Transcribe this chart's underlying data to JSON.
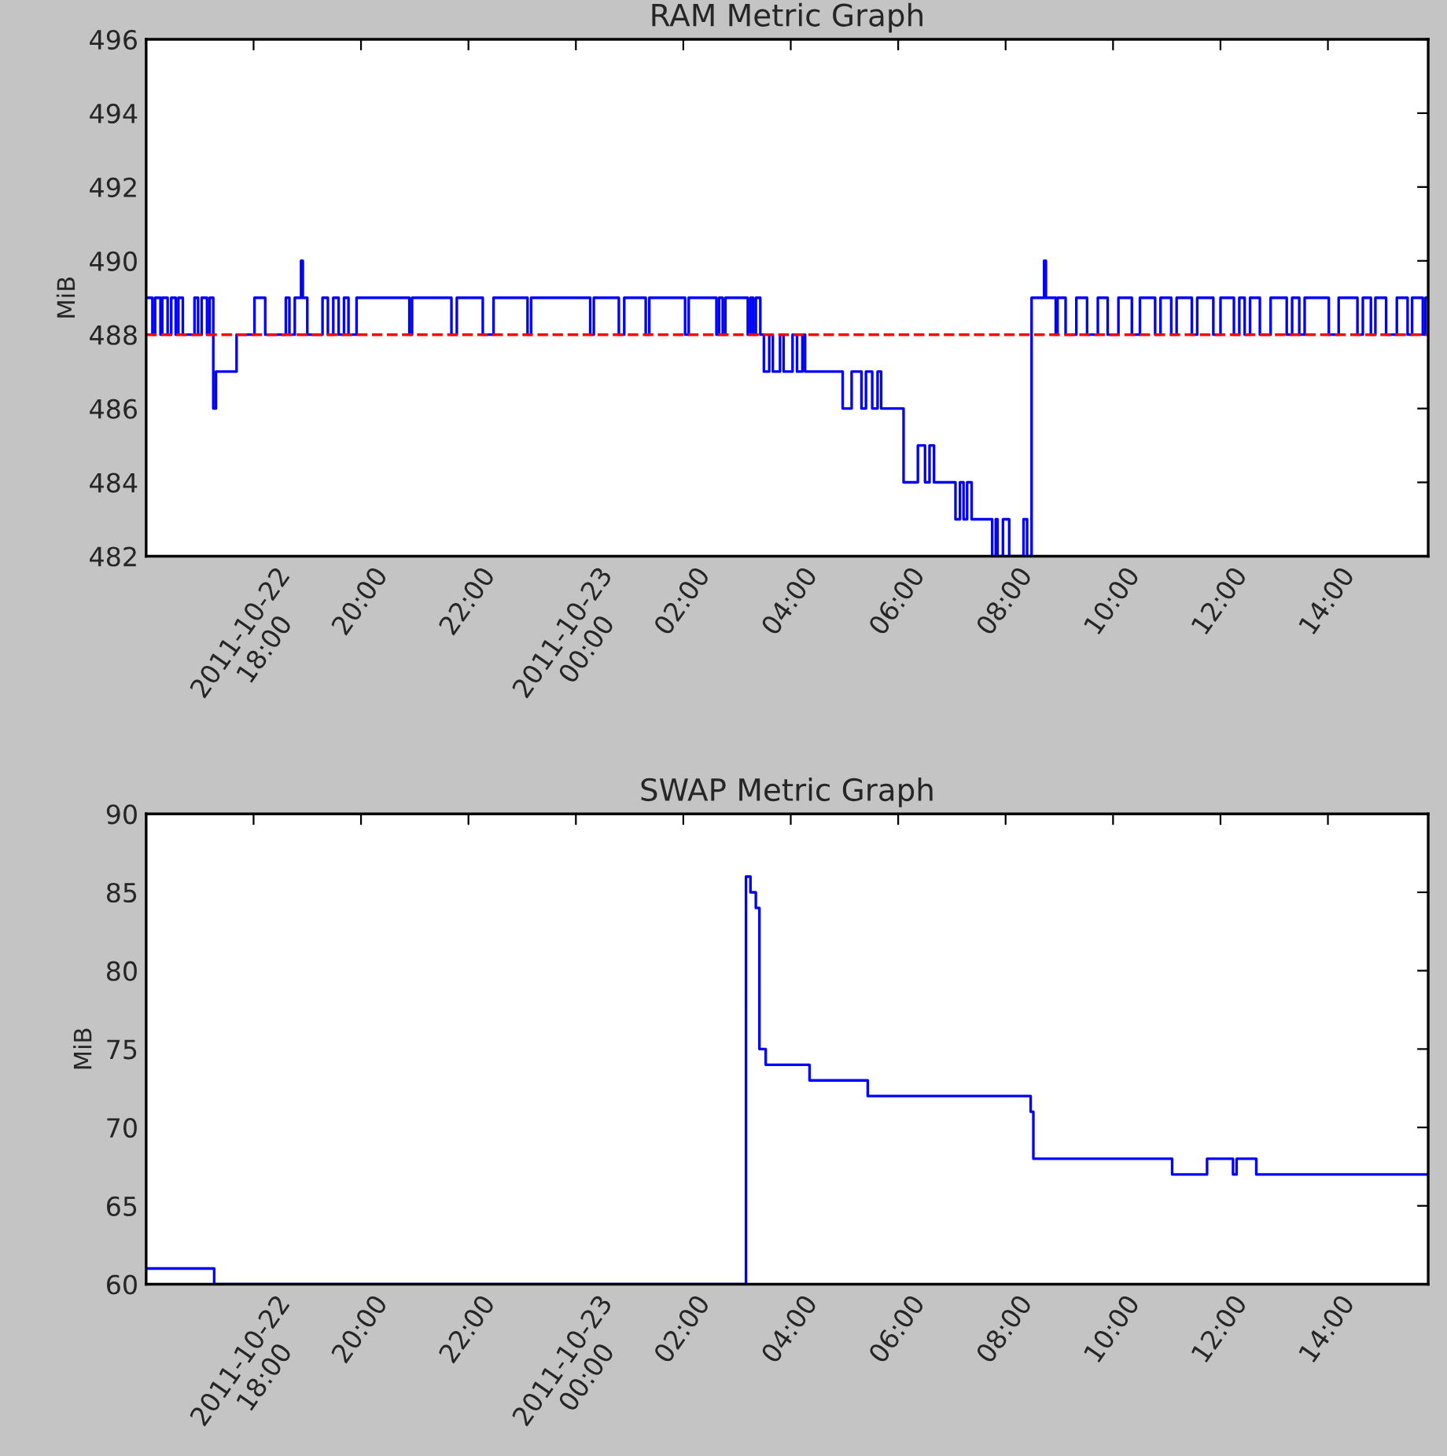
{
  "chart_data": [
    {
      "type": "step",
      "title": "RAM Metric Graph",
      "ylabel": "MiB",
      "xlim": [
        "2011-10-22T16:00",
        "2011-10-23T15:52"
      ],
      "ylim": [
        482,
        496
      ],
      "yticks": [
        482,
        484,
        486,
        488,
        490,
        492,
        494,
        496
      ],
      "xticks": [
        {
          "value": "2011-10-22T18:00",
          "label": "2011-10-22\n18:00"
        },
        {
          "value": "2011-10-22T20:00",
          "label": "20:00"
        },
        {
          "value": "2011-10-22T22:00",
          "label": "22:00"
        },
        {
          "value": "2011-10-23T00:00",
          "label": "2011-10-23\n00:00"
        },
        {
          "value": "2011-10-23T02:00",
          "label": "02:00"
        },
        {
          "value": "2011-10-23T04:00",
          "label": "04:00"
        },
        {
          "value": "2011-10-23T06:00",
          "label": "06:00"
        },
        {
          "value": "2011-10-23T08:00",
          "label": "08:00"
        },
        {
          "value": "2011-10-23T10:00",
          "label": "10:00"
        },
        {
          "value": "2011-10-23T12:00",
          "label": "12:00"
        },
        {
          "value": "2011-10-23T14:00",
          "label": "14:00"
        }
      ],
      "ref_lines": [
        {
          "axis": "y",
          "value": 488,
          "color": "#ff0000",
          "line_style": "dashed"
        }
      ],
      "series": [
        {
          "color": "#0000ff",
          "x": [
            "2011-10-22T16:00",
            "2011-10-22T16:07",
            "2011-10-22T16:10",
            "2011-10-22T16:16",
            "2011-10-22T16:18",
            "2011-10-22T16:24",
            "2011-10-22T16:28",
            "2011-10-22T16:33",
            "2011-10-22T16:36",
            "2011-10-22T16:41",
            "2011-10-22T16:54",
            "2011-10-22T16:58",
            "2011-10-22T17:02",
            "2011-10-22T17:08",
            "2011-10-22T17:11",
            "2011-10-22T17:15",
            "2011-10-22T17:18",
            "2011-10-22T17:41",
            "2011-10-22T18:01",
            "2011-10-22T18:13",
            "2011-10-22T18:36",
            "2011-10-22T18:40",
            "2011-10-22T18:46",
            "2011-10-22T18:53",
            "2011-10-22T18:55",
            "2011-10-22T19:00",
            "2011-10-22T19:17",
            "2011-10-22T19:23",
            "2011-10-22T19:29",
            "2011-10-22T19:35",
            "2011-10-22T19:41",
            "2011-10-22T19:46",
            "2011-10-22T19:55",
            "2011-10-22T20:54",
            "2011-10-22T20:57",
            "2011-10-22T21:41",
            "2011-10-22T21:47",
            "2011-10-22T22:16",
            "2011-10-22T22:28",
            "2011-10-22T23:06",
            "2011-10-22T23:10",
            "2011-10-23T00:16",
            "2011-10-23T00:20",
            "2011-10-23T00:48",
            "2011-10-23T00:54",
            "2011-10-23T01:18",
            "2011-10-23T01:22",
            "2011-10-23T02:02",
            "2011-10-23T02:06",
            "2011-10-23T02:37",
            "2011-10-23T02:40",
            "2011-10-23T02:44",
            "2011-10-23T02:47",
            "2011-10-23T03:12",
            "2011-10-23T03:15",
            "2011-10-23T03:18",
            "2011-10-23T03:21",
            "2011-10-23T03:26",
            "2011-10-23T03:30",
            "2011-10-23T03:36",
            "2011-10-23T03:40",
            "2011-10-23T03:48",
            "2011-10-23T03:52",
            "2011-10-23T04:02",
            "2011-10-23T04:07",
            "2011-10-23T04:13",
            "2011-10-23T04:16",
            "2011-10-23T04:58",
            "2011-10-23T05:08",
            "2011-10-23T05:19",
            "2011-10-23T05:24",
            "2011-10-23T05:31",
            "2011-10-23T05:37",
            "2011-10-23T05:41",
            "2011-10-23T06:06",
            "2011-10-23T06:22",
            "2011-10-23T06:30",
            "2011-10-23T06:35",
            "2011-10-23T06:40",
            "2011-10-23T07:04",
            "2011-10-23T07:09",
            "2011-10-23T07:13",
            "2011-10-23T07:17",
            "2011-10-23T07:22",
            "2011-10-23T07:45",
            "2011-10-23T07:49",
            "2011-10-23T07:51",
            "2011-10-23T07:57",
            "2011-10-23T08:04",
            "2011-10-23T08:20",
            "2011-10-23T08:24",
            "2011-10-23T08:29",
            "2011-10-23T08:43",
            "2011-10-23T08:45",
            "2011-10-23T08:56",
            "2011-10-23T08:58",
            "2011-10-23T09:07",
            "2011-10-23T09:19",
            "2011-10-23T09:31",
            "2011-10-23T09:43",
            "2011-10-23T09:54",
            "2011-10-23T10:06",
            "2011-10-23T10:21",
            "2011-10-23T10:30",
            "2011-10-23T10:47",
            "2011-10-23T10:53",
            "2011-10-23T11:05",
            "2011-10-23T11:11",
            "2011-10-23T11:28",
            "2011-10-23T11:34",
            "2011-10-23T11:52",
            "2011-10-23T12:00",
            "2011-10-23T12:15",
            "2011-10-23T12:21",
            "2011-10-23T12:27",
            "2011-10-23T12:33",
            "2011-10-23T12:44",
            "2011-10-23T12:56",
            "2011-10-23T13:14",
            "2011-10-23T13:20",
            "2011-10-23T13:28",
            "2011-10-23T13:34",
            "2011-10-23T14:01",
            "2011-10-23T14:12",
            "2011-10-23T14:33",
            "2011-10-23T14:39",
            "2011-10-23T14:48",
            "2011-10-23T14:53",
            "2011-10-23T15:05",
            "2011-10-23T15:17",
            "2011-10-23T15:29",
            "2011-10-23T15:34",
            "2011-10-23T15:46",
            "2011-10-23T15:49",
            "2011-10-23T15:52"
          ],
          "values": [
            489,
            488,
            489,
            488,
            489,
            488,
            489,
            488,
            489,
            488,
            489,
            488,
            489,
            488,
            489,
            486,
            487,
            488,
            489,
            488,
            489,
            488,
            489,
            490,
            489,
            488,
            489,
            488,
            489,
            488,
            489,
            488,
            489,
            488,
            489,
            488,
            489,
            488,
            489,
            488,
            489,
            488,
            489,
            488,
            489,
            488,
            489,
            488,
            489,
            488,
            489,
            488,
            489,
            488,
            489,
            488,
            489,
            488,
            487,
            488,
            487,
            488,
            487,
            488,
            487,
            488,
            487,
            486,
            487,
            486,
            487,
            486,
            487,
            486,
            484,
            485,
            484,
            485,
            484,
            483,
            484,
            483,
            484,
            483,
            482,
            483,
            482,
            483,
            482,
            483,
            482,
            489,
            490,
            489,
            488,
            489,
            488,
            489,
            488,
            489,
            488,
            489,
            488,
            489,
            488,
            489,
            488,
            489,
            488,
            489,
            488,
            489,
            488,
            489,
            488,
            489,
            488,
            489,
            488,
            489,
            488,
            489,
            488,
            489,
            488,
            489,
            488,
            489,
            488,
            489,
            488,
            489,
            488,
            489,
            489
          ]
        }
      ]
    },
    {
      "type": "step",
      "title": "SWAP Metric Graph",
      "ylabel": "MiB",
      "xlim": [
        "2011-10-22T16:00",
        "2011-10-23T15:52"
      ],
      "ylim": [
        60,
        90
      ],
      "yticks": [
        60,
        65,
        70,
        75,
        80,
        85,
        90
      ],
      "xticks": [
        {
          "value": "2011-10-22T18:00",
          "label": "2011-10-22\n18:00"
        },
        {
          "value": "2011-10-22T20:00",
          "label": "20:00"
        },
        {
          "value": "2011-10-22T22:00",
          "label": "22:00"
        },
        {
          "value": "2011-10-23T00:00",
          "label": "2011-10-23\n00:00"
        },
        {
          "value": "2011-10-23T02:00",
          "label": "02:00"
        },
        {
          "value": "2011-10-23T04:00",
          "label": "04:00"
        },
        {
          "value": "2011-10-23T06:00",
          "label": "06:00"
        },
        {
          "value": "2011-10-23T08:00",
          "label": "08:00"
        },
        {
          "value": "2011-10-23T10:00",
          "label": "10:00"
        },
        {
          "value": "2011-10-23T12:00",
          "label": "12:00"
        },
        {
          "value": "2011-10-23T14:00",
          "label": "14:00"
        }
      ],
      "series": [
        {
          "color": "#0000ff",
          "x": [
            "2011-10-22T16:00",
            "2011-10-22T17:16",
            "2011-10-23T03:10",
            "2011-10-23T03:15",
            "2011-10-23T03:21",
            "2011-10-23T03:25",
            "2011-10-23T03:32",
            "2011-10-23T04:21",
            "2011-10-23T05:26",
            "2011-10-23T08:28",
            "2011-10-23T08:31",
            "2011-10-23T11:06",
            "2011-10-23T11:45",
            "2011-10-23T12:14",
            "2011-10-23T12:18",
            "2011-10-23T12:40",
            "2011-10-23T15:52"
          ],
          "values": [
            61,
            60,
            86,
            85,
            84,
            75,
            74,
            73,
            72,
            71,
            68,
            67,
            68,
            67,
            68,
            67,
            67
          ]
        }
      ]
    }
  ]
}
